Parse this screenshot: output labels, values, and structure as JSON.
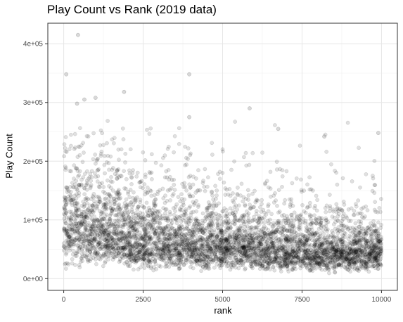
{
  "chart_data": {
    "type": "scatter",
    "title": "Play Count vs Rank (2019 data)",
    "xlabel": "rank",
    "ylabel": "Play Count",
    "xlim": [
      -500,
      10500
    ],
    "ylim": [
      -20000,
      435000
    ],
    "x_ticks": [
      0,
      2500,
      5000,
      7500,
      10000
    ],
    "x_tick_labels": [
      "0",
      "2500",
      "5000",
      "7500",
      "10000"
    ],
    "y_ticks": [
      0,
      100000,
      200000,
      300000,
      400000
    ],
    "y_tick_labels": [
      "0e+00",
      "1e+05",
      "2e+05",
      "3e+05",
      "4e+05"
    ],
    "grid": true,
    "point_color": "#000000",
    "point_alpha": 0.12,
    "notable_points": [
      {
        "x": 450,
        "y": 415000
      },
      {
        "x": 80,
        "y": 348000
      },
      {
        "x": 3950,
        "y": 348000
      },
      {
        "x": 1900,
        "y": 318000
      },
      {
        "x": 1000,
        "y": 308000
      },
      {
        "x": 650,
        "y": 305000
      },
      {
        "x": 420,
        "y": 298000
      },
      {
        "x": 5850,
        "y": 290000
      },
      {
        "x": 3950,
        "y": 275000
      },
      {
        "x": 6750,
        "y": 255000
      },
      {
        "x": 8200,
        "y": 242000
      },
      {
        "x": 9900,
        "y": 248000
      }
    ],
    "density_profile": {
      "description": "approximately 10000 points, one per rank",
      "rank_range": [
        0,
        10000
      ],
      "median_play_count": [
        {
          "rank": 0,
          "value": 100000
        },
        {
          "rank": 1000,
          "value": 85000
        },
        {
          "rank": 2500,
          "value": 70000
        },
        {
          "rank": 5000,
          "value": 60000
        },
        {
          "rank": 7500,
          "value": 52000
        },
        {
          "rank": 10000,
          "value": 48000
        }
      ]
    }
  }
}
